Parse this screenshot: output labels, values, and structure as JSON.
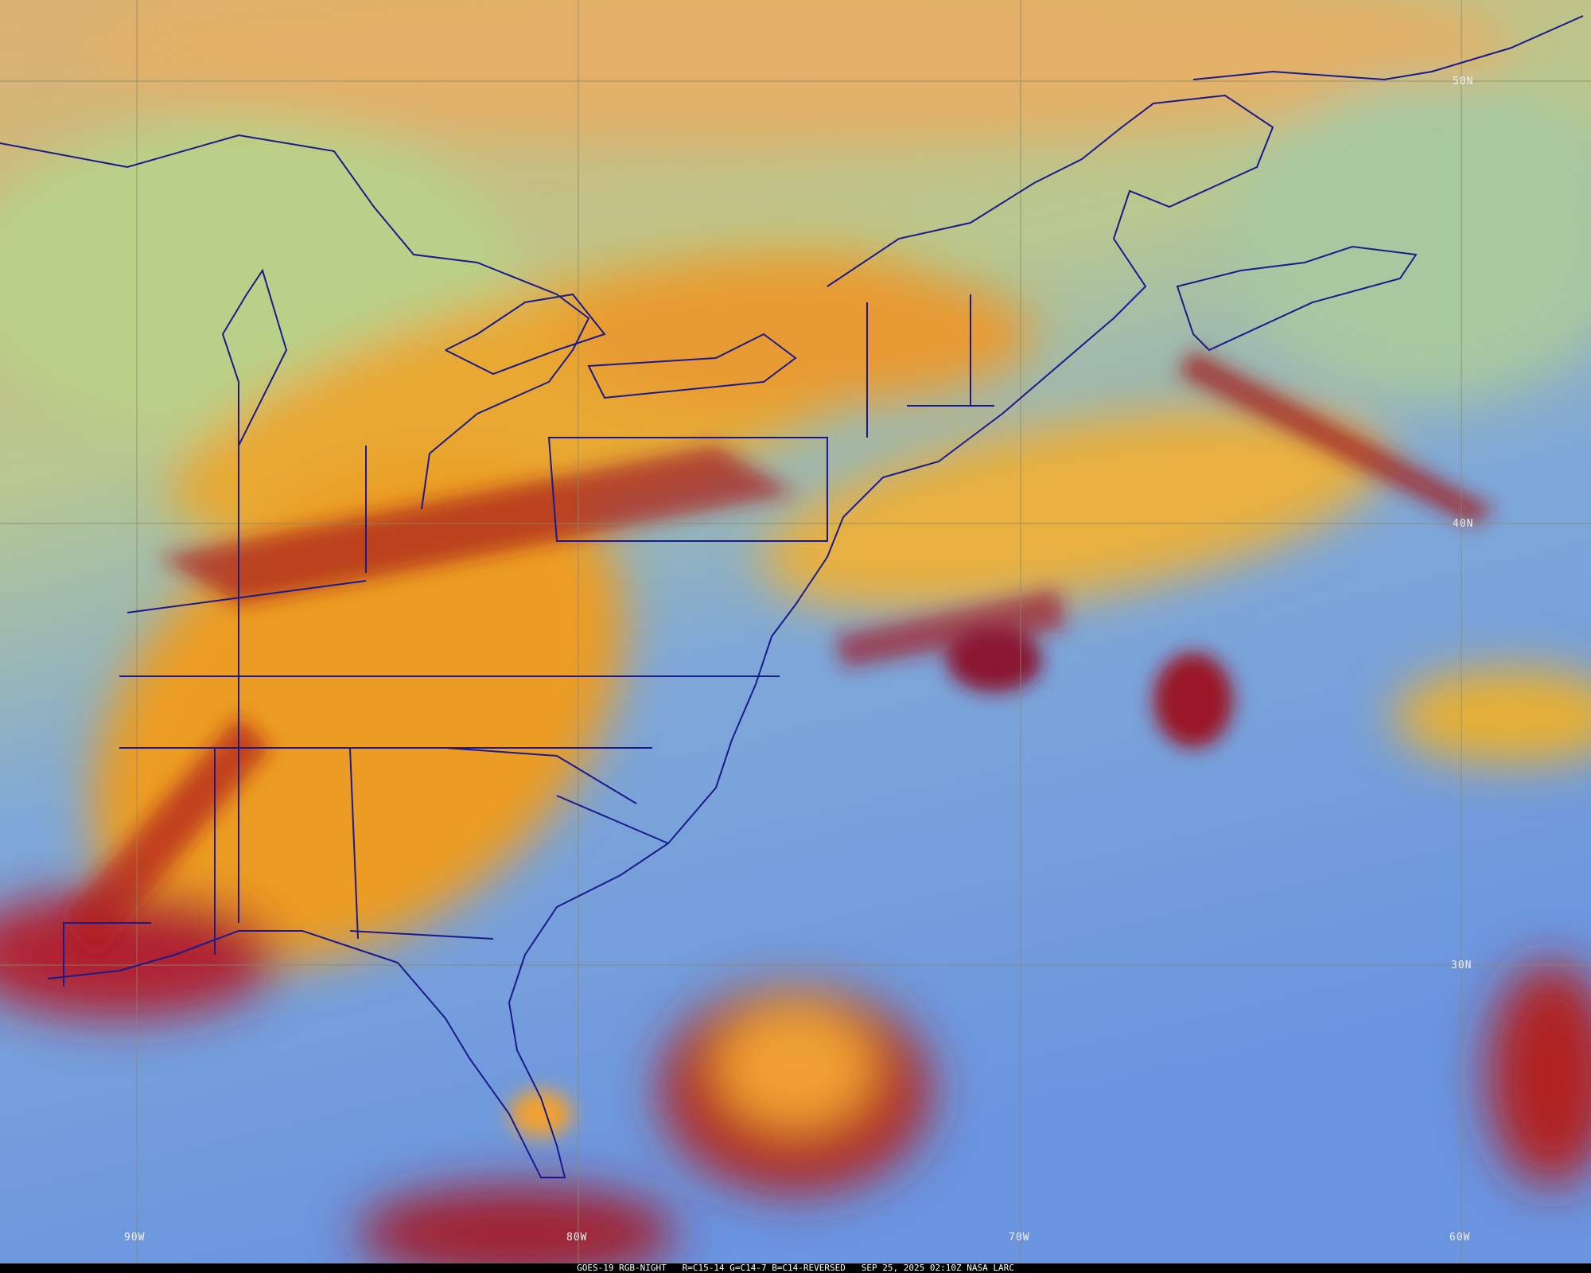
{
  "caption": {
    "satellite": "GOES-19 RGB-NIGHT",
    "channels": "R=C15-14 G=C14-7 B=C14-REVERSED",
    "timestamp": "SEP 25, 2025 02:10Z NASA LARC"
  },
  "latitude_labels": [
    "50N",
    "40N",
    "30N"
  ],
  "longitude_labels": [
    "90W",
    "80W",
    "70W",
    "60W"
  ],
  "colors": {
    "ocean_clear": "#6f9be6",
    "land_clear": "#d8b070",
    "high_cloud": "#f0a020",
    "thick_cloud": "#9a1820",
    "low_cloud": "#a8e080",
    "borders": "#1a1a8c",
    "graticule": "#8a8a6a"
  }
}
